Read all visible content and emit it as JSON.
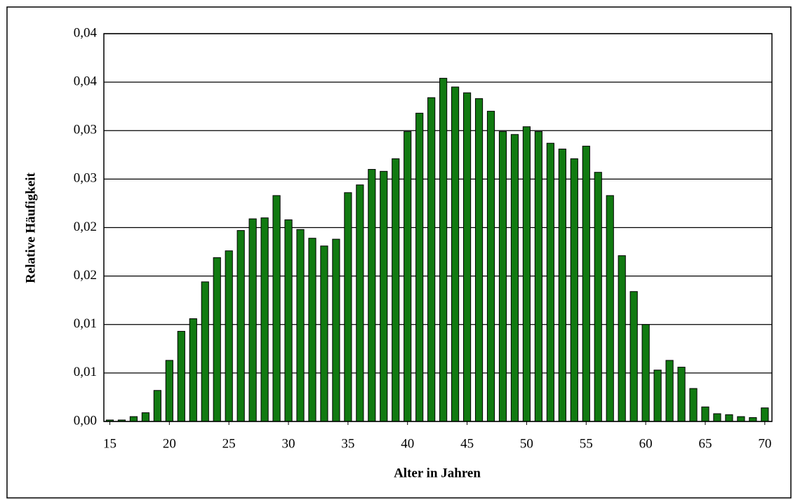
{
  "chart_data": {
    "type": "bar",
    "x_label": "Alter in Jahren",
    "y_label": "Relative Häufigkeit",
    "x": [
      15,
      16,
      17,
      18,
      19,
      20,
      21,
      22,
      23,
      24,
      25,
      26,
      27,
      28,
      29,
      30,
      31,
      32,
      33,
      34,
      35,
      36,
      37,
      38,
      39,
      40,
      41,
      42,
      43,
      44,
      45,
      46,
      47,
      48,
      49,
      50,
      51,
      52,
      53,
      54,
      55,
      56,
      57,
      58,
      59,
      60,
      61,
      62,
      63,
      64,
      65,
      66,
      67,
      68,
      69,
      70
    ],
    "values": [
      0.00015,
      0.00015,
      0.0005,
      0.0009,
      0.0032,
      0.0063,
      0.0093,
      0.0106,
      0.0144,
      0.0169,
      0.0176,
      0.0197,
      0.0209,
      0.021,
      0.0233,
      0.0208,
      0.0198,
      0.0189,
      0.0181,
      0.0188,
      0.0236,
      0.0244,
      0.026,
      0.0258,
      0.0271,
      0.0299,
      0.0318,
      0.0334,
      0.0354,
      0.0345,
      0.0339,
      0.0333,
      0.032,
      0.0299,
      0.0296,
      0.0304,
      0.0299,
      0.0287,
      0.0281,
      0.0271,
      0.0284,
      0.0257,
      0.0233,
      0.0171,
      0.0134,
      0.01,
      0.0053,
      0.0063,
      0.0056,
      0.0034,
      0.0015,
      0.0008,
      0.0007,
      0.0005,
      0.0004,
      0.0014
    ],
    "color": "#117a11",
    "xlim": [
      14.5,
      70.6
    ],
    "xticks": [
      15,
      20,
      25,
      30,
      35,
      40,
      45,
      50,
      55,
      60,
      65,
      70
    ],
    "ylim": [
      0,
      0.04
    ],
    "yticks": [
      {
        "value": 0,
        "label": "0,00"
      },
      {
        "value": 0.005,
        "label": "0,01"
      },
      {
        "value": 0.01,
        "label": "0,01"
      },
      {
        "value": 0.015,
        "label": "0,02"
      },
      {
        "value": 0.02,
        "label": "0,02"
      },
      {
        "value": 0.025,
        "label": "0,03"
      },
      {
        "value": 0.03,
        "label": "0,03"
      },
      {
        "value": 0.035,
        "label": "0,04"
      },
      {
        "value": 0.04,
        "label": "0,04"
      }
    ],
    "grid": true
  }
}
